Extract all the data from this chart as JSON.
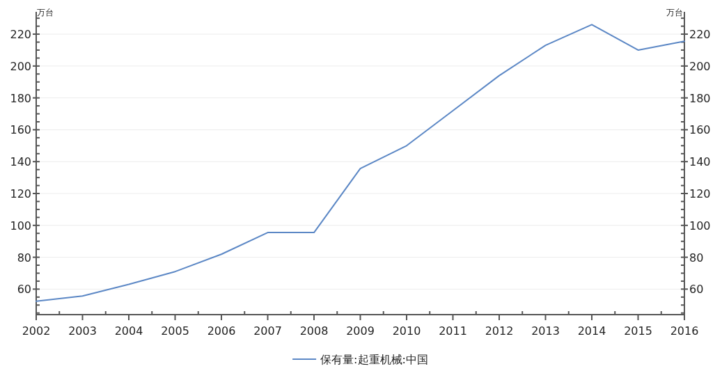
{
  "chart_data": {
    "type": "line",
    "ylabel": "万台",
    "y2label": "万台",
    "x": [
      2002,
      2003,
      2004,
      2005,
      2006,
      2007,
      2008,
      2009,
      2010,
      2011,
      2012,
      2013,
      2014,
      2015,
      2016
    ],
    "series": [
      {
        "name": "保有量:起重机械:中国",
        "color": "#5b87c5",
        "values": [
          52.4,
          55.7,
          63,
          71,
          81.9,
          95.5,
          95.5,
          135.7,
          150,
          172,
          194,
          213,
          226,
          210,
          215.5
        ]
      }
    ],
    "xlim": [
      2002,
      2016
    ],
    "xticks": [
      2002,
      2003,
      2004,
      2005,
      2006,
      2007,
      2008,
      2009,
      2010,
      2011,
      2012,
      2013,
      2014,
      2015,
      2016
    ],
    "ylim": [
      44,
      234
    ],
    "yticks": [
      60,
      80,
      100,
      120,
      140,
      160,
      180,
      200,
      220
    ],
    "y2lim": [
      44,
      234
    ],
    "y2ticks": [
      60,
      80,
      100,
      120,
      140,
      160,
      180,
      200,
      220
    ],
    "grid": "y",
    "legend": "bottom",
    "marker": "none",
    "line_style": "solid"
  }
}
